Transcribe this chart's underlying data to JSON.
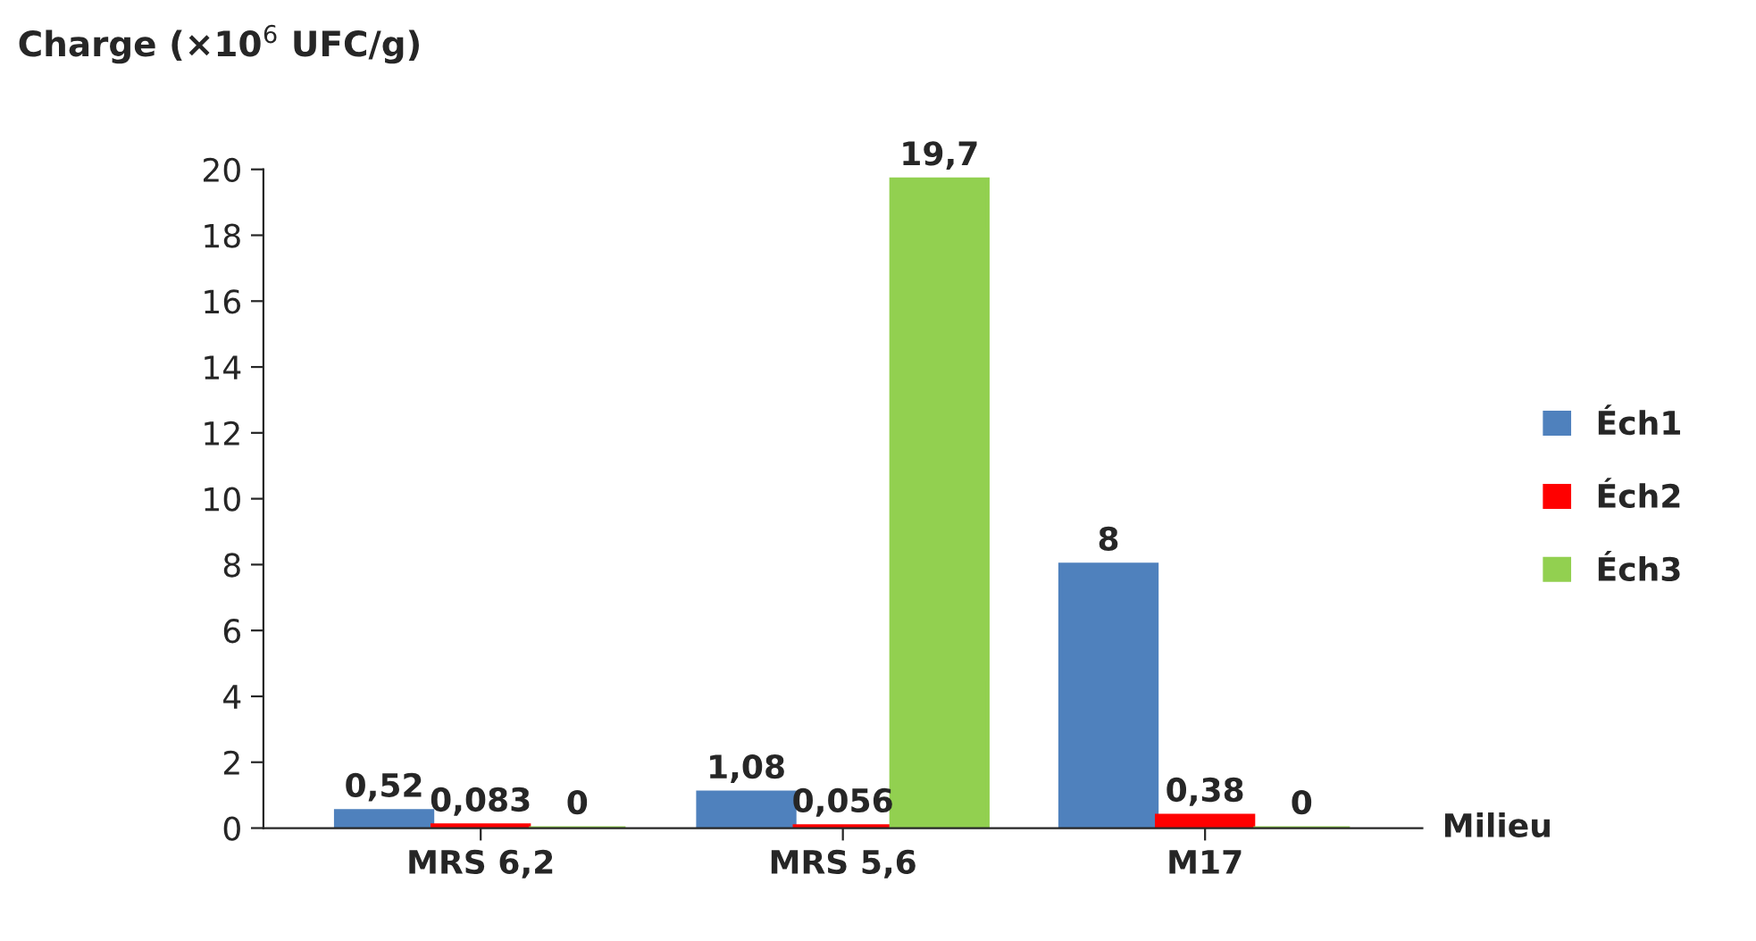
{
  "chart_data": {
    "type": "bar",
    "ylabel": "Charge (×10$^{6}$ UFC/g)",
    "xlabel": "Milieu",
    "categories": [
      "MRS 6,2",
      "MRS 5,6",
      "M17"
    ],
    "series": [
      {
        "name": "Éch1",
        "color": "#4f81bd",
        "values": [
          0.52,
          1.08,
          8
        ],
        "value_labels": [
          "0,52",
          "1,08",
          "8"
        ]
      },
      {
        "name": "Éch2",
        "color": "#ff0000",
        "values": [
          0.083,
          0.056,
          0.38
        ],
        "value_labels": [
          "0,083",
          "0,056",
          "0,38"
        ]
      },
      {
        "name": "Éch3",
        "color": "#92d050",
        "values": [
          0,
          19.7,
          0
        ],
        "value_labels": [
          "0",
          "19,7",
          "0"
        ]
      }
    ],
    "ylim": [
      0,
      20
    ],
    "yticks": [
      0,
      2,
      4,
      6,
      8,
      10,
      12,
      14,
      16,
      18,
      20
    ],
    "grid": false,
    "legend": "right"
  }
}
